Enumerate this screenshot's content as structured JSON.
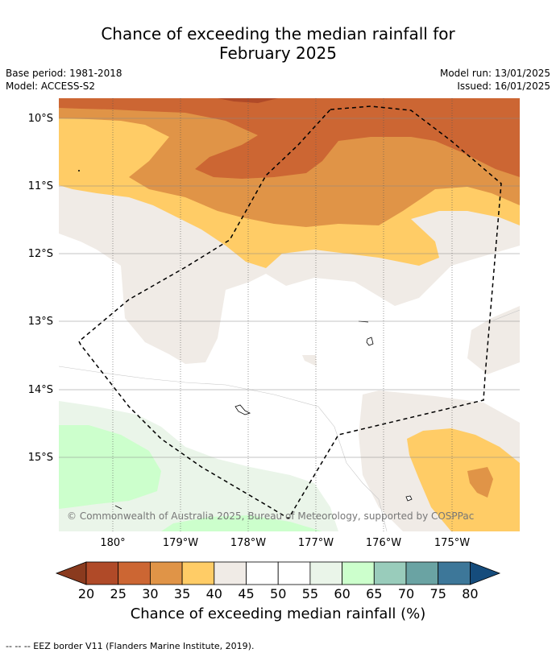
{
  "title_line1": "Chance of exceeding the median rainfall for",
  "title_line2": "February 2025",
  "meta": {
    "base_period": "Base period: 1981-2018",
    "model": "Model: ACCESS-S2",
    "model_run": "Model run: 13/01/2025",
    "issued": "Issued: 16/01/2025"
  },
  "map": {
    "lat_labels": [
      "10°S",
      "11°S",
      "12°S",
      "13°S",
      "14°S",
      "15°S"
    ],
    "lon_labels": [
      "180°",
      "179°W",
      "178°W",
      "177°W",
      "176°W",
      "175°W"
    ],
    "copyright": "© Commonwealth of Australia 2025, Bureau of Meteorology, supported by COSPPac",
    "eez_style": "dashed black"
  },
  "colorbar": {
    "title": "Chance of exceeding median rainfall (%)",
    "ticks": [
      "20",
      "25",
      "30",
      "35",
      "40",
      "45",
      "50",
      "55",
      "60",
      "65",
      "70",
      "75",
      "80"
    ],
    "low_extend_color": "#8a3a1e",
    "high_extend_color": "#154c7c",
    "colors": [
      "#b04a28",
      "#cc6633",
      "#e09447",
      "#ffcc66",
      "#f0ebe6",
      "#ffffff",
      "#ffffff",
      "#eaf5e9",
      "#ccffcc",
      "#99ccbb",
      "#6aa3a3",
      "#3d7799"
    ]
  },
  "footer": "--  --  -- EEZ border V11 (Flanders Marine Institute, 2019)."
}
